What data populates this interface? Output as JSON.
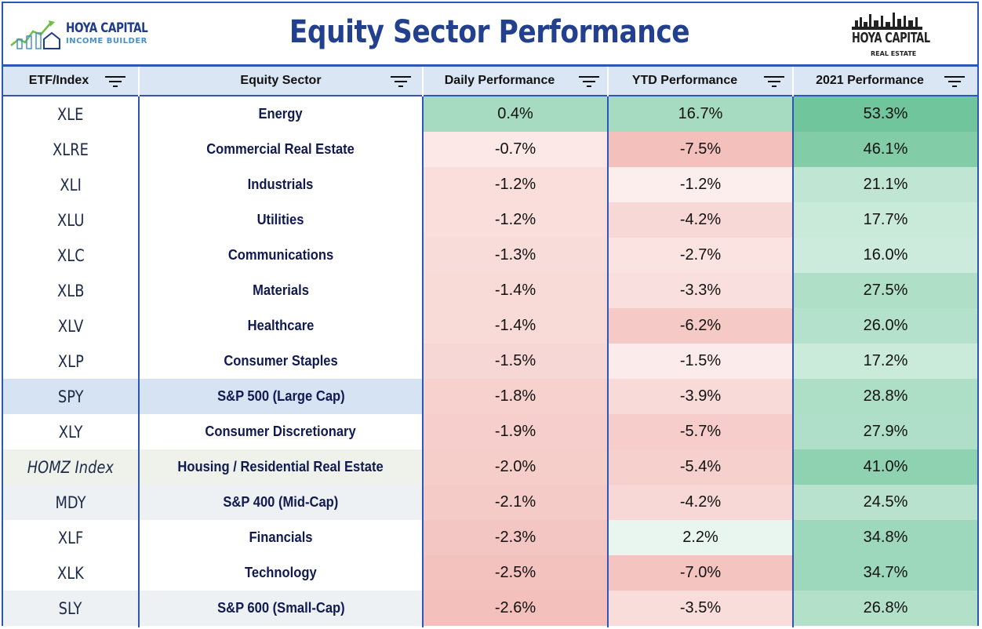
{
  "header": {
    "title": "Equity Sector Performance",
    "logo_left": {
      "line1": "HOYA CAPITAL",
      "line2": "INCOME BUILDER"
    },
    "logo_right": {
      "line1": "HOYA CAPITAL",
      "line2": "REAL ESTATE"
    }
  },
  "columns": [
    {
      "label": "ETF/Index"
    },
    {
      "label": "Equity Sector"
    },
    {
      "label": "Daily Performance"
    },
    {
      "label": "YTD Performance"
    },
    {
      "label": "2021 Performance"
    }
  ],
  "colors": {
    "border": "#2d56b8",
    "header_bg": "#dbe6f4",
    "title": "#23408e",
    "positive": "#57bb8a",
    "negative": "#e67c73"
  },
  "rows": [
    {
      "etf": "XLE",
      "sector": "Energy",
      "daily": "0.4%",
      "ytd": "16.7%",
      "y2021": "53.3%",
      "daily_v": 0.4,
      "ytd_v": 16.7,
      "y2021_v": 53.3
    },
    {
      "etf": "XLRE",
      "sector": "Commercial Real Estate",
      "daily": "-0.7%",
      "ytd": "-7.5%",
      "y2021": "46.1%",
      "daily_v": -0.7,
      "ytd_v": -7.5,
      "y2021_v": 46.1
    },
    {
      "etf": "XLI",
      "sector": "Industrials",
      "daily": "-1.2%",
      "ytd": "-1.2%",
      "y2021": "21.1%",
      "daily_v": -1.2,
      "ytd_v": -1.2,
      "y2021_v": 21.1
    },
    {
      "etf": "XLU",
      "sector": "Utilities",
      "daily": "-1.2%",
      "ytd": "-4.2%",
      "y2021": "17.7%",
      "daily_v": -1.2,
      "ytd_v": -4.2,
      "y2021_v": 17.7
    },
    {
      "etf": "XLC",
      "sector": "Communications",
      "daily": "-1.3%",
      "ytd": "-2.7%",
      "y2021": "16.0%",
      "daily_v": -1.3,
      "ytd_v": -2.7,
      "y2021_v": 16.0
    },
    {
      "etf": "XLB",
      "sector": "Materials",
      "daily": "-1.4%",
      "ytd": "-3.3%",
      "y2021": "27.5%",
      "daily_v": -1.4,
      "ytd_v": -3.3,
      "y2021_v": 27.5
    },
    {
      "etf": "XLV",
      "sector": "Healthcare",
      "daily": "-1.4%",
      "ytd": "-6.2%",
      "y2021": "26.0%",
      "daily_v": -1.4,
      "ytd_v": -6.2,
      "y2021_v": 26.0
    },
    {
      "etf": "XLP",
      "sector": "Consumer Staples",
      "daily": "-1.5%",
      "ytd": "-1.5%",
      "y2021": "17.2%",
      "daily_v": -1.5,
      "ytd_v": -1.5,
      "y2021_v": 17.2
    },
    {
      "etf": "SPY",
      "sector": "S&P 500 (Large Cap)",
      "daily": "-1.8%",
      "ytd": "-3.9%",
      "y2021": "28.8%",
      "daily_v": -1.8,
      "ytd_v": -3.9,
      "y2021_v": 28.8,
      "highlight": "#d6e3f3"
    },
    {
      "etf": "XLY",
      "sector": "Consumer Discretionary",
      "daily": "-1.9%",
      "ytd": "-5.7%",
      "y2021": "27.9%",
      "daily_v": -1.9,
      "ytd_v": -5.7,
      "y2021_v": 27.9
    },
    {
      "etf": "HOMZ Index",
      "sector": "Housing / Residential Real Estate",
      "daily": "-2.0%",
      "ytd": "-5.4%",
      "y2021": "41.0%",
      "daily_v": -2.0,
      "ytd_v": -5.4,
      "y2021_v": 41.0,
      "italic": true,
      "highlight": "#eef2ea"
    },
    {
      "etf": "MDY",
      "sector": "S&P 400 (Mid-Cap)",
      "daily": "-2.1%",
      "ytd": "-4.2%",
      "y2021": "24.5%",
      "daily_v": -2.1,
      "ytd_v": -4.2,
      "y2021_v": 24.5,
      "highlight": "#edf1f4"
    },
    {
      "etf": "XLF",
      "sector": "Financials",
      "daily": "-2.3%",
      "ytd": "2.2%",
      "y2021": "34.8%",
      "daily_v": -2.3,
      "ytd_v": 2.2,
      "y2021_v": 34.8
    },
    {
      "etf": "XLK",
      "sector": "Technology",
      "daily": "-2.5%",
      "ytd": "-7.0%",
      "y2021": "34.7%",
      "daily_v": -2.5,
      "ytd_v": -7.0,
      "y2021_v": 34.7
    },
    {
      "etf": "SLY",
      "sector": "S&P 600 (Small-Cap)",
      "daily": "-2.6%",
      "ytd": "-3.5%",
      "y2021": "26.8%",
      "daily_v": -2.6,
      "ytd_v": -3.5,
      "y2021_v": 26.8,
      "highlight": "#edf1f4"
    }
  ]
}
